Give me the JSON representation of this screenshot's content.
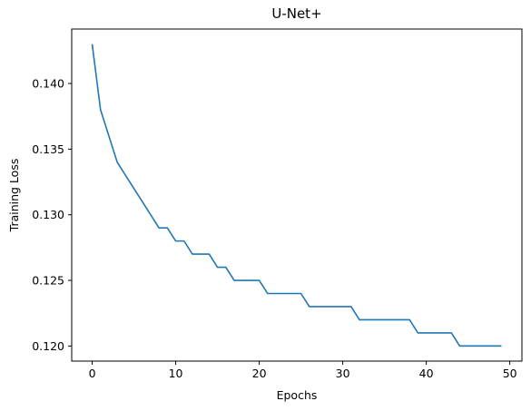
{
  "chart_data": {
    "type": "line",
    "title": "U-Net+",
    "xlabel": "Epochs",
    "ylabel": "Training Loss",
    "xlim": [
      -2.45,
      51.45
    ],
    "ylim": [
      0.11885,
      0.14415
    ],
    "xticks": [
      0,
      10,
      20,
      30,
      40,
      50
    ],
    "yticks": [
      0.12,
      0.125,
      0.13,
      0.135,
      0.14
    ],
    "xtick_labels": [
      "0",
      "10",
      "20",
      "30",
      "40",
      "50"
    ],
    "ytick_labels": [
      "0.120",
      "0.125",
      "0.130",
      "0.135",
      "0.140"
    ],
    "grid": false,
    "legend": "none",
    "series": [
      {
        "color": "#1f77b4",
        "x": [
          0,
          1,
          2,
          3,
          4,
          5,
          6,
          7,
          8,
          9,
          10,
          11,
          12,
          13,
          14,
          15,
          16,
          17,
          18,
          19,
          20,
          21,
          22,
          23,
          24,
          25,
          26,
          27,
          28,
          29,
          30,
          31,
          32,
          33,
          34,
          35,
          36,
          37,
          38,
          39,
          40,
          41,
          42,
          43,
          44,
          45,
          46,
          47,
          48,
          49
        ],
        "y": [
          0.143,
          0.138,
          0.136,
          0.134,
          0.133,
          0.132,
          0.131,
          0.13,
          0.129,
          0.129,
          0.128,
          0.128,
          0.127,
          0.127,
          0.127,
          0.126,
          0.126,
          0.125,
          0.125,
          0.125,
          0.125,
          0.124,
          0.124,
          0.124,
          0.124,
          0.124,
          0.123,
          0.123,
          0.123,
          0.123,
          0.123,
          0.123,
          0.122,
          0.122,
          0.122,
          0.122,
          0.122,
          0.122,
          0.122,
          0.121,
          0.121,
          0.121,
          0.121,
          0.121,
          0.12,
          0.12,
          0.12,
          0.12,
          0.12,
          0.12
        ]
      }
    ]
  }
}
